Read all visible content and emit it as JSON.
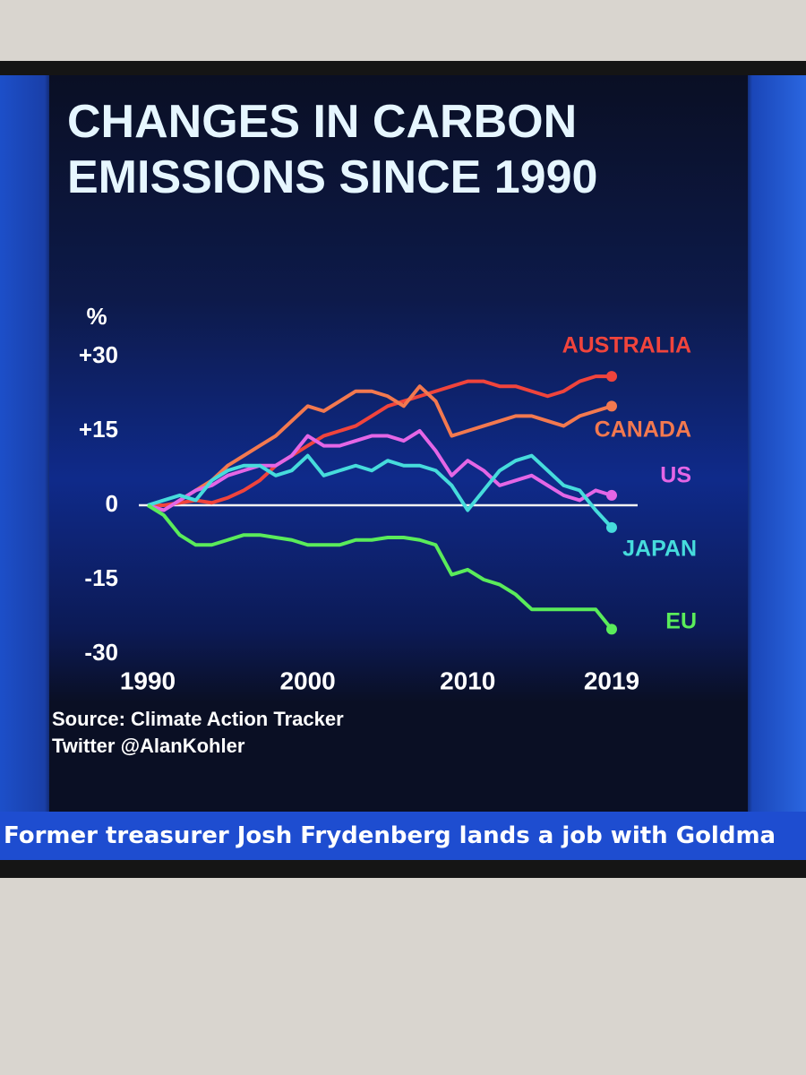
{
  "chart_data": {
    "type": "line",
    "title": "CHANGES IN CARBON EMISSIONS SINCE 1990",
    "y_label": "%",
    "source": "Source: Climate Action Tracker",
    "credit": "Twitter @AlanKohler",
    "x": [
      1990,
      1991,
      1992,
      1993,
      1994,
      1995,
      1996,
      1997,
      1998,
      1999,
      2000,
      2001,
      2002,
      2003,
      2004,
      2005,
      2006,
      2007,
      2008,
      2009,
      2010,
      2011,
      2012,
      2013,
      2014,
      2015,
      2016,
      2017,
      2018,
      2019
    ],
    "xlim": [
      1990,
      2019
    ],
    "xticks": [
      1990,
      2000,
      2010,
      2019
    ],
    "ylim": [
      -30,
      30
    ],
    "yticks": [
      {
        "value": 30,
        "label": "+30"
      },
      {
        "value": 15,
        "label": "+15"
      },
      0,
      -15,
      -30
    ],
    "zero_line": true,
    "series": [
      {
        "name": "AUSTRALIA",
        "color": "#f0443c",
        "values": [
          0,
          0,
          0.5,
          1,
          0.5,
          1.5,
          3,
          5,
          8,
          10,
          12,
          14,
          15,
          16,
          18,
          20,
          21,
          22,
          23,
          24,
          25,
          25,
          24,
          24,
          23,
          22,
          23,
          25,
          26,
          26
        ]
      },
      {
        "name": "CANADA",
        "color": "#f3794f",
        "values": [
          0,
          -1,
          1,
          3,
          5,
          8,
          10,
          12,
          14,
          17,
          20,
          19,
          21,
          23,
          23,
          22,
          20,
          24,
          21,
          14,
          15,
          16,
          17,
          18,
          18,
          17,
          16,
          18,
          19,
          20
        ]
      },
      {
        "name": "US",
        "color": "#e466e6",
        "values": [
          0,
          -1,
          1,
          3,
          4,
          6,
          7,
          8,
          8,
          10,
          14,
          12,
          12,
          13,
          14,
          14,
          13,
          15,
          11,
          6,
          9,
          7,
          4,
          5,
          6,
          4,
          2,
          1,
          3,
          2
        ]
      },
      {
        "name": "JAPAN",
        "color": "#46dcdc",
        "values": [
          0,
          1,
          2,
          1,
          5,
          7,
          8,
          8,
          6,
          7,
          10,
          6,
          7,
          8,
          7,
          9,
          8,
          8,
          7,
          4,
          -1,
          3,
          7,
          9,
          10,
          7,
          4,
          3,
          -1,
          -4.5
        ]
      },
      {
        "name": "EU",
        "color": "#5aec5a",
        "values": [
          0,
          -2,
          -6,
          -8,
          -8,
          -7,
          -6,
          -6,
          -6.5,
          -7,
          -8,
          -8,
          -8,
          -7,
          -7,
          -6.5,
          -6.5,
          -7,
          -8,
          -14,
          -13,
          -15,
          -16,
          -18,
          -21,
          -21,
          -21,
          -21,
          -21,
          -25
        ]
      }
    ]
  },
  "ticker": "Former treasurer Josh Frydenberg lands a job with Goldma"
}
